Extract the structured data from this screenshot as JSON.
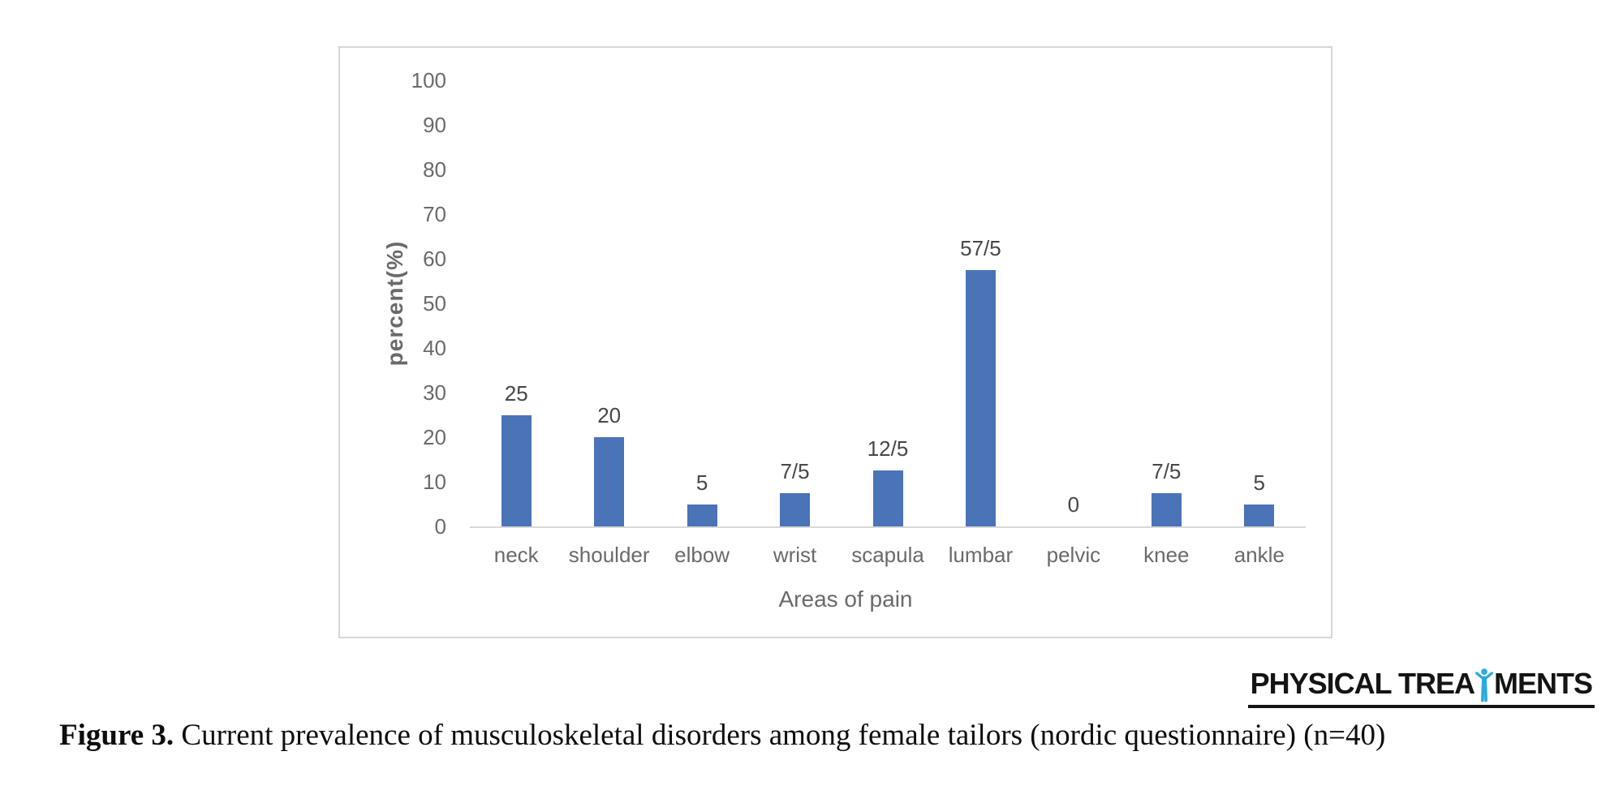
{
  "figure": {
    "caption_label": "Figure 3.",
    "caption_text": " Current prevalence of musculoskeletal disorders among female tailors (nordic questionnaire) (n=40)"
  },
  "logo": {
    "text_left": "PHYSICAL TREA",
    "text_right": "MENTS",
    "text_color": "#141414",
    "person_icon_color": "#29abe2"
  },
  "chart_data": {
    "type": "bar",
    "title": "",
    "categories": [
      "neck",
      "shoulder",
      "elbow",
      "wrist",
      "scapula",
      "lumbar",
      "pelvic",
      "knee",
      "ankle"
    ],
    "values": [
      25,
      20,
      5,
      7.5,
      12.5,
      57.5,
      0,
      7.5,
      5
    ],
    "value_labels": [
      "25",
      "20",
      "5",
      "7/5",
      "12/5",
      "57/5",
      "0",
      "7/5",
      "5"
    ],
    "xlabel": "Areas of pain",
    "ylabel": "percent(%)",
    "ylim": [
      0,
      100
    ],
    "yticks": [
      0,
      10,
      20,
      30,
      40,
      50,
      60,
      70,
      80,
      90,
      100
    ],
    "grid": false,
    "legend": false,
    "bar_color": "#4a73b8",
    "axis_line_color": "#d9d9d9",
    "tick_label_color": "#6a6a6a",
    "data_label_color": "#474747"
  }
}
